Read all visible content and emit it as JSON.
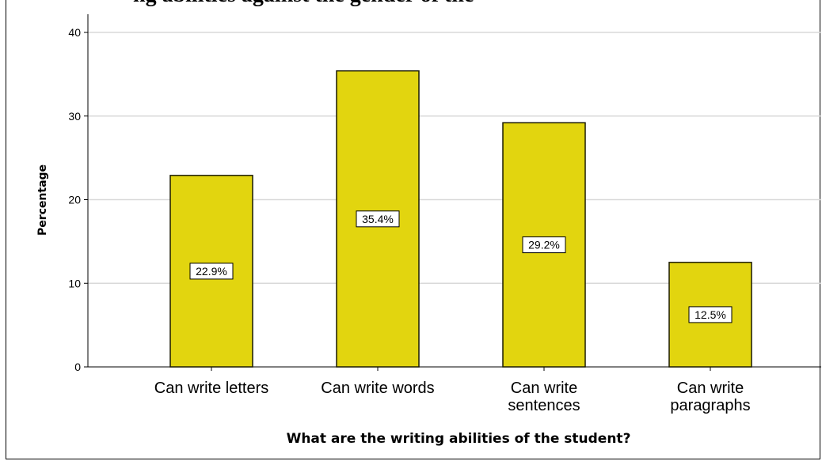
{
  "partial_title": "ng abilities against the gender of the",
  "chart_data": {
    "type": "bar",
    "title": "",
    "xlabel": "What are the writing abilities of the student?",
    "ylabel": "Percentage",
    "ylim": [
      0,
      40
    ],
    "yticks": [
      "0",
      "10",
      "20",
      "30",
      "40"
    ],
    "grid": true,
    "categories": [
      [
        "Can write letters"
      ],
      [
        "Can write words"
      ],
      [
        "Can write",
        "sentences"
      ],
      [
        "Can write",
        "paragraphs"
      ]
    ],
    "values": [
      22.9,
      35.4,
      29.2,
      12.5
    ],
    "data_labels": [
      "22.9%",
      "35.4%",
      "29.2%",
      "12.5%"
    ],
    "bar_color": "#e2d50f",
    "bar_edge_color": "#1a1a00",
    "grid_color": "#d9d9d9"
  }
}
